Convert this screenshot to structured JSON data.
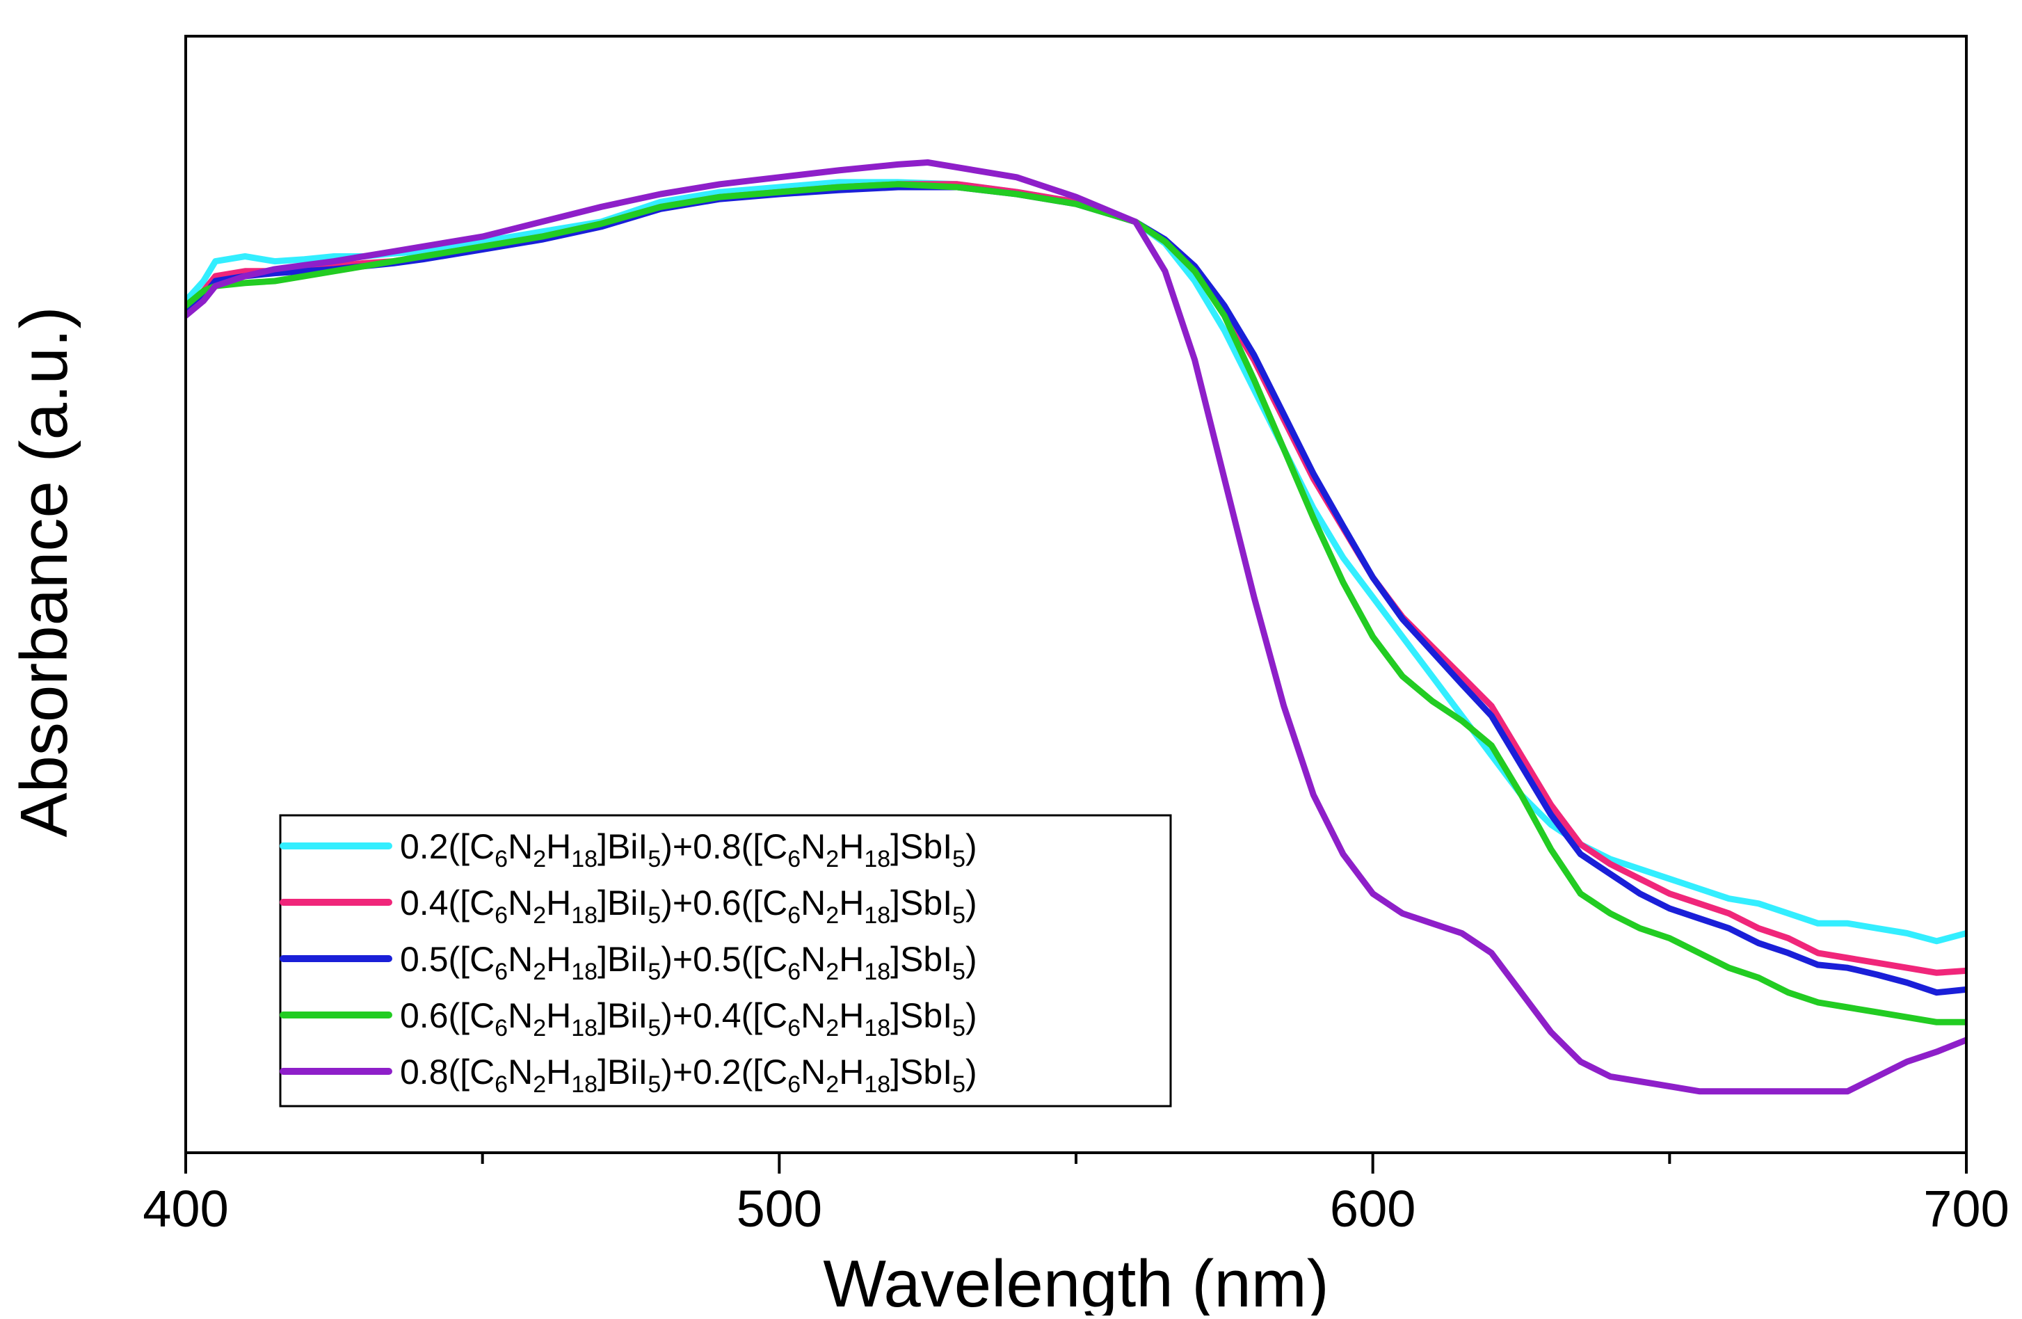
{
  "chart_data": {
    "type": "line",
    "title": "",
    "xlabel": "Wavelength (nm)",
    "ylabel": "Absorbance (a.u.)",
    "xlim": [
      400,
      700
    ],
    "ylim": [
      0,
      1
    ],
    "y_ticks_shown": false,
    "x_ticks": [
      {
        "value": 400,
        "label": "400"
      },
      {
        "value": 500,
        "label": "500"
      },
      {
        "value": 600,
        "label": "600"
      },
      {
        "value": 700,
        "label": "700"
      }
    ],
    "x_minor_ticks": [
      450,
      550,
      650
    ],
    "grid": false,
    "legend_position": "bottom-left",
    "series": [
      {
        "name": "0.2([C6N2H18]BiI5)+0.8([C6N2H18]SbI5)",
        "color": "#33eeff",
        "legend": {
          "coef1": "0.2(",
          "coef2": ")+0.8("
        },
        "x": [
          400,
          403,
          405,
          410,
          415,
          420,
          425,
          430,
          435,
          440,
          450,
          460,
          470,
          480,
          490,
          500,
          510,
          520,
          530,
          540,
          550,
          560,
          565,
          570,
          575,
          580,
          585,
          590,
          595,
          600,
          605,
          610,
          615,
          620,
          625,
          630,
          635,
          640,
          645,
          650,
          655,
          660,
          665,
          670,
          675,
          680,
          685,
          690,
          695,
          700
        ],
        "y": [
          0.8,
          0.82,
          0.84,
          0.845,
          0.84,
          0.842,
          0.845,
          0.845,
          0.848,
          0.85,
          0.86,
          0.87,
          0.88,
          0.9,
          0.91,
          0.915,
          0.92,
          0.92,
          0.918,
          0.91,
          0.9,
          0.88,
          0.858,
          0.82,
          0.77,
          0.71,
          0.65,
          0.59,
          0.54,
          0.5,
          0.46,
          0.42,
          0.38,
          0.34,
          0.3,
          0.27,
          0.25,
          0.235,
          0.225,
          0.215,
          0.205,
          0.195,
          0.19,
          0.18,
          0.17,
          0.17,
          0.165,
          0.16,
          0.152,
          0.16
        ]
      },
      {
        "name": "0.4([C6N2H18]BiI5)+0.6([C6N2H18]SbI5)",
        "color": "#f0267a",
        "legend": {
          "coef1": "0.4(",
          "coef2": ")+0.6("
        },
        "x": [
          400,
          403,
          405,
          410,
          415,
          420,
          425,
          430,
          435,
          440,
          450,
          460,
          470,
          480,
          490,
          500,
          510,
          520,
          530,
          540,
          550,
          560,
          565,
          570,
          575,
          580,
          585,
          590,
          595,
          600,
          605,
          610,
          615,
          620,
          625,
          630,
          635,
          640,
          645,
          650,
          655,
          660,
          665,
          670,
          675,
          680,
          685,
          690,
          695,
          700
        ],
        "y": [
          0.79,
          0.81,
          0.825,
          0.83,
          0.83,
          0.832,
          0.835,
          0.838,
          0.84,
          0.845,
          0.855,
          0.865,
          0.878,
          0.895,
          0.905,
          0.91,
          0.915,
          0.918,
          0.918,
          0.91,
          0.9,
          0.88,
          0.86,
          0.83,
          0.79,
          0.74,
          0.68,
          0.62,
          0.57,
          0.52,
          0.48,
          0.45,
          0.42,
          0.39,
          0.34,
          0.29,
          0.25,
          0.23,
          0.215,
          0.2,
          0.19,
          0.18,
          0.165,
          0.155,
          0.14,
          0.135,
          0.13,
          0.125,
          0.12,
          0.122
        ]
      },
      {
        "name": "0.5([C6N2H18]BiI5)+0.5([C6N2H18]SbI5)",
        "color": "#1a1fd8",
        "legend": {
          "coef1": "0.5(",
          "coef2": ")+0.5("
        },
        "x": [
          400,
          403,
          405,
          410,
          415,
          420,
          425,
          430,
          435,
          440,
          450,
          460,
          470,
          480,
          490,
          500,
          510,
          520,
          530,
          540,
          550,
          560,
          565,
          570,
          575,
          580,
          585,
          590,
          595,
          600,
          605,
          610,
          615,
          620,
          625,
          630,
          635,
          640,
          645,
          650,
          655,
          660,
          665,
          670,
          675,
          680,
          685,
          690,
          695,
          700
        ],
        "y": [
          0.79,
          0.805,
          0.82,
          0.825,
          0.828,
          0.83,
          0.832,
          0.835,
          0.838,
          0.842,
          0.852,
          0.862,
          0.875,
          0.893,
          0.903,
          0.908,
          0.912,
          0.915,
          0.915,
          0.908,
          0.898,
          0.88,
          0.862,
          0.835,
          0.795,
          0.745,
          0.685,
          0.625,
          0.572,
          0.52,
          0.478,
          0.445,
          0.412,
          0.38,
          0.33,
          0.28,
          0.24,
          0.22,
          0.2,
          0.185,
          0.175,
          0.165,
          0.15,
          0.14,
          0.128,
          0.125,
          0.118,
          0.11,
          0.1,
          0.103
        ]
      },
      {
        "name": "0.6([C6N2H18]BiI5)+0.4([C6N2H18]SbI5)",
        "color": "#22cc22",
        "legend": {
          "coef1": "0.6(",
          "coef2": ")+0.4("
        },
        "x": [
          400,
          403,
          405,
          410,
          415,
          420,
          425,
          430,
          435,
          440,
          450,
          460,
          470,
          480,
          490,
          500,
          510,
          520,
          530,
          540,
          550,
          560,
          565,
          570,
          575,
          580,
          585,
          590,
          595,
          600,
          605,
          610,
          615,
          620,
          625,
          630,
          635,
          640,
          645,
          650,
          655,
          660,
          665,
          670,
          675,
          680,
          685,
          690,
          695,
          700
        ],
        "y": [
          0.795,
          0.81,
          0.815,
          0.818,
          0.82,
          0.825,
          0.83,
          0.835,
          0.84,
          0.845,
          0.855,
          0.865,
          0.878,
          0.895,
          0.905,
          0.91,
          0.915,
          0.918,
          0.915,
          0.908,
          0.898,
          0.88,
          0.86,
          0.83,
          0.785,
          0.72,
          0.65,
          0.58,
          0.515,
          0.46,
          0.42,
          0.395,
          0.375,
          0.35,
          0.3,
          0.245,
          0.2,
          0.18,
          0.165,
          0.155,
          0.14,
          0.125,
          0.115,
          0.1,
          0.09,
          0.085,
          0.08,
          0.075,
          0.07,
          0.07
        ]
      },
      {
        "name": "0.8([C6N2H18]BiI5)+0.2([C6N2H18]SbI5)",
        "color": "#8e1fc9",
        "legend": {
          "coef1": "0.8(",
          "coef2": ")+0.2("
        },
        "x": [
          400,
          403,
          405,
          410,
          415,
          420,
          425,
          430,
          435,
          440,
          450,
          460,
          470,
          480,
          490,
          500,
          510,
          520,
          525,
          530,
          540,
          550,
          560,
          565,
          570,
          575,
          580,
          585,
          590,
          595,
          600,
          605,
          610,
          615,
          620,
          625,
          630,
          635,
          640,
          645,
          655,
          665,
          675,
          680,
          685,
          690,
          695,
          700
        ],
        "y": [
          0.785,
          0.8,
          0.815,
          0.825,
          0.832,
          0.836,
          0.84,
          0.845,
          0.85,
          0.855,
          0.865,
          0.88,
          0.895,
          0.908,
          0.918,
          0.925,
          0.932,
          0.938,
          0.94,
          0.935,
          0.925,
          0.905,
          0.88,
          0.83,
          0.74,
          0.62,
          0.5,
          0.39,
          0.3,
          0.24,
          0.2,
          0.18,
          0.17,
          0.16,
          0.14,
          0.1,
          0.06,
          0.03,
          0.015,
          0.01,
          0.0,
          0.0,
          0.0,
          0.0,
          0.015,
          0.03,
          0.04,
          0.052
        ]
      }
    ]
  }
}
